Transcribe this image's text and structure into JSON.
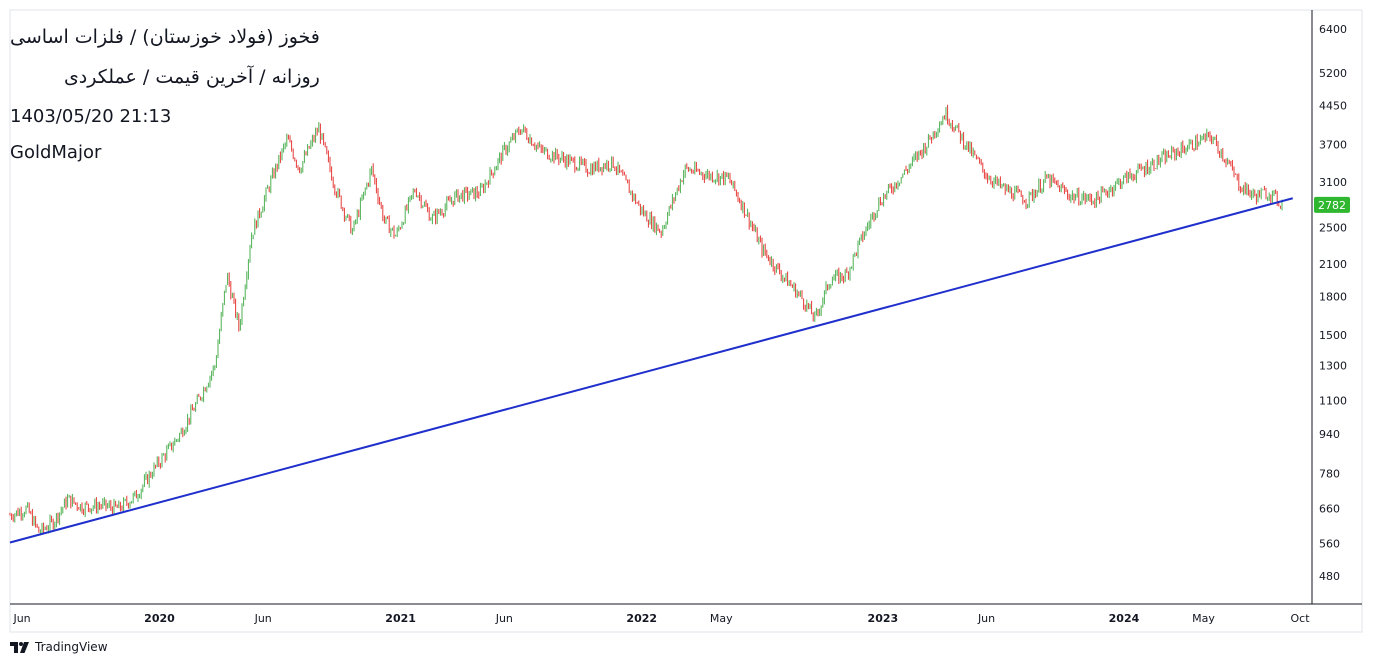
{
  "header": {
    "title": "فخوز (فولاد خوزستان) / فلزات اساسی",
    "subtitle": "روزانه / آخرین قیمت / عملکردی",
    "datetime": "1403/05/20 21:13",
    "author": "GoldMajor"
  },
  "branding": {
    "name": "TradingView"
  },
  "colors": {
    "up": "#4caf50",
    "down": "#e53935",
    "trendline": "#1f2fcc",
    "price_tag": "#2fb82f",
    "axis": "#131722",
    "border": "#e0e3eb"
  },
  "chart_data": {
    "type": "candlestick",
    "y_scale": "log",
    "ylim": [
      420,
      7000
    ],
    "y_ticks": [
      6400,
      5200,
      4450,
      3700,
      3100,
      2500,
      2100,
      1800,
      1500,
      1300,
      1100,
      940,
      780,
      660,
      560,
      480
    ],
    "x_ticks": [
      {
        "label": "Jun",
        "t": 0.55,
        "bold": false
      },
      {
        "label": "2020",
        "t": 1.12,
        "bold": true
      },
      {
        "label": "Jun",
        "t": 1.55,
        "bold": false
      },
      {
        "label": "2021",
        "t": 2.12,
        "bold": true
      },
      {
        "label": "Jun",
        "t": 2.55,
        "bold": false
      },
      {
        "label": "2022",
        "t": 3.12,
        "bold": true
      },
      {
        "label": "May",
        "t": 3.45,
        "bold": false
      },
      {
        "label": "2023",
        "t": 4.12,
        "bold": true
      },
      {
        "label": "Jun",
        "t": 4.55,
        "bold": false
      },
      {
        "label": "2024",
        "t": 5.12,
        "bold": true
      },
      {
        "label": "May",
        "t": 5.45,
        "bold": false
      },
      {
        "label": "Oct",
        "t": 5.85,
        "bold": false
      }
    ],
    "xlim": [
      0.5,
      5.85
    ],
    "last_price": 2782,
    "price_path": [
      [
        0.5,
        640
      ],
      [
        0.57,
        660
      ],
      [
        0.62,
        590
      ],
      [
        0.68,
        620
      ],
      [
        0.74,
        690
      ],
      [
        0.8,
        665
      ],
      [
        0.88,
        670
      ],
      [
        0.95,
        660
      ],
      [
        1.02,
        700
      ],
      [
        1.1,
        800
      ],
      [
        1.2,
        930
      ],
      [
        1.28,
        1100
      ],
      [
        1.35,
        1300
      ],
      [
        1.4,
        2000
      ],
      [
        1.45,
        1550
      ],
      [
        1.5,
        2400
      ],
      [
        1.58,
        3100
      ],
      [
        1.65,
        3800
      ],
      [
        1.7,
        3300
      ],
      [
        1.78,
        4000
      ],
      [
        1.85,
        3000
      ],
      [
        1.92,
        2450
      ],
      [
        2.0,
        3300
      ],
      [
        2.05,
        2600
      ],
      [
        2.1,
        2400
      ],
      [
        2.18,
        3000
      ],
      [
        2.25,
        2600
      ],
      [
        2.35,
        2900
      ],
      [
        2.45,
        2950
      ],
      [
        2.55,
        3600
      ],
      [
        2.62,
        4000
      ],
      [
        2.7,
        3600
      ],
      [
        2.8,
        3450
      ],
      [
        2.9,
        3300
      ],
      [
        3.0,
        3400
      ],
      [
        3.05,
        3100
      ],
      [
        3.12,
        2700
      ],
      [
        3.2,
        2450
      ],
      [
        3.3,
        3300
      ],
      [
        3.4,
        3200
      ],
      [
        3.48,
        3150
      ],
      [
        3.55,
        2700
      ],
      [
        3.62,
        2250
      ],
      [
        3.7,
        2000
      ],
      [
        3.78,
        1800
      ],
      [
        3.84,
        1620
      ],
      [
        3.9,
        1950
      ],
      [
        3.97,
        2000
      ],
      [
        4.02,
        2300
      ],
      [
        4.1,
        2800
      ],
      [
        4.2,
        3200
      ],
      [
        4.3,
        3700
      ],
      [
        4.38,
        4300
      ],
      [
        4.45,
        3800
      ],
      [
        4.55,
        3200
      ],
      [
        4.62,
        3000
      ],
      [
        4.72,
        2850
      ],
      [
        4.8,
        3150
      ],
      [
        4.9,
        2900
      ],
      [
        5.0,
        2850
      ],
      [
        5.1,
        3100
      ],
      [
        5.2,
        3300
      ],
      [
        5.3,
        3500
      ],
      [
        5.4,
        3700
      ],
      [
        5.48,
        3850
      ],
      [
        5.55,
        3400
      ],
      [
        5.6,
        3050
      ],
      [
        5.66,
        2900
      ],
      [
        5.72,
        2950
      ],
      [
        5.78,
        2782
      ]
    ],
    "trendline": [
      [
        0.5,
        562
      ],
      [
        5.82,
        2870
      ]
    ]
  }
}
